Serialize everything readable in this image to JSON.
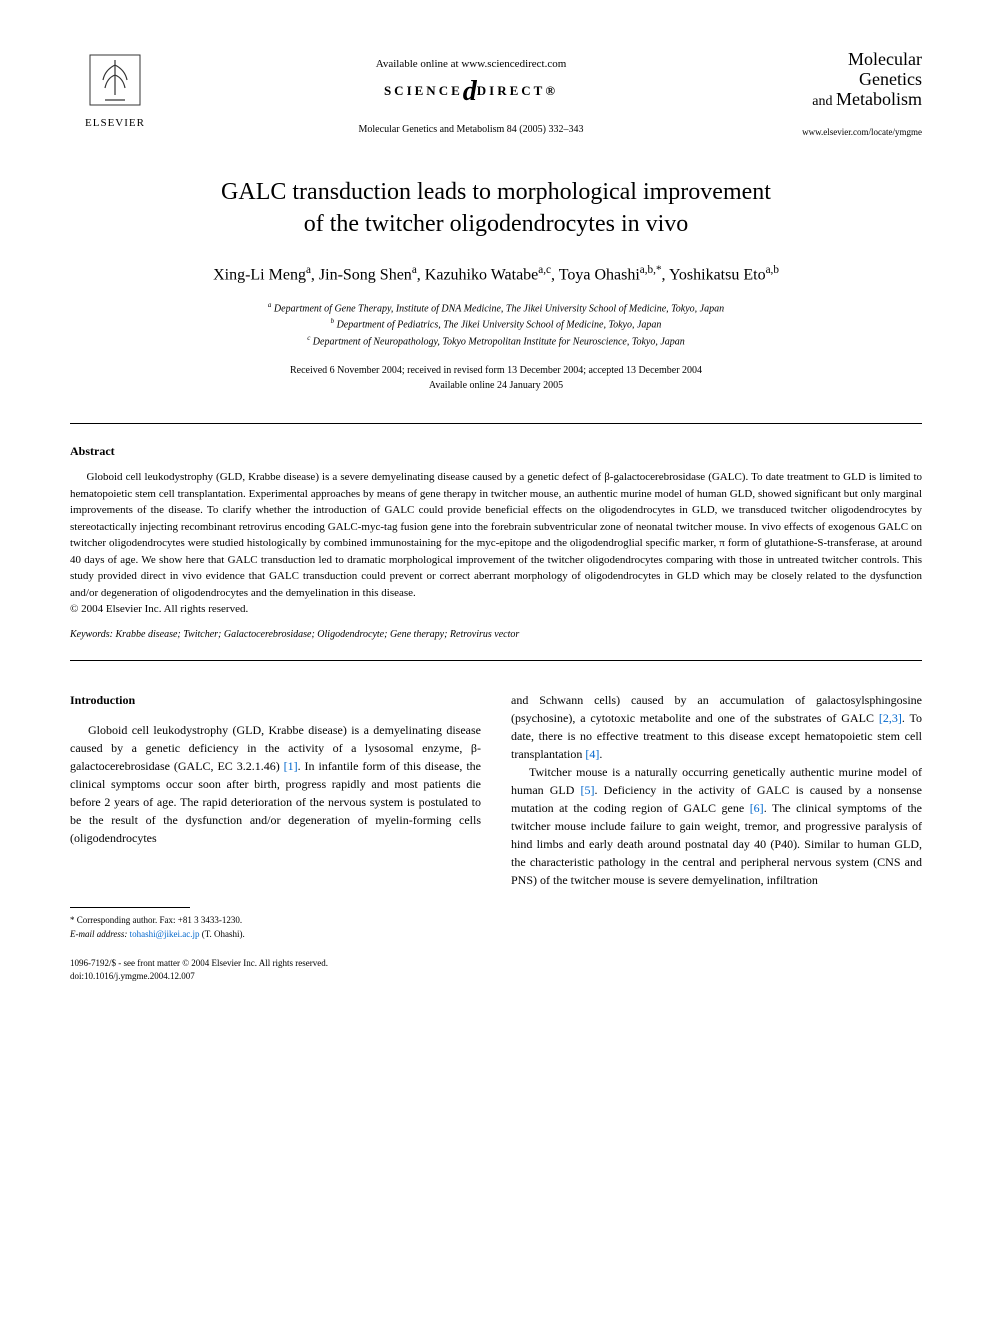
{
  "header": {
    "publisher_name": "ELSEVIER",
    "available_online": "Available online at www.sciencedirect.com",
    "science_direct_left": "SCIENCE",
    "science_direct_right": "DIRECT®",
    "citation": "Molecular Genetics and Metabolism 84 (2005) 332–343",
    "journal_title_line1": "Molecular Genetics",
    "journal_title_line2_and": "and ",
    "journal_title_line2": "Metabolism",
    "journal_url": "www.elsevier.com/locate/ymgme"
  },
  "article": {
    "title_line1": "GALC transduction leads to morphological improvement",
    "title_line2": "of the twitcher oligodendrocytes in vivo",
    "authors_html": "Xing-Li Meng<sup>a</sup>, Jin-Song Shen<sup>a</sup>, Kazuhiko Watabe<sup>a,c</sup>, Toya Ohashi<sup>a,b,*</sup>, Yoshikatsu Eto<sup>a,b</sup>",
    "affiliations": [
      "a Department of Gene Therapy, Institute of DNA Medicine, The Jikei University School of Medicine, Tokyo, Japan",
      "b Department of Pediatrics, The Jikei University School of Medicine, Tokyo, Japan",
      "c Department of Neuropathology, Tokyo Metropolitan Institute for Neuroscience, Tokyo, Japan"
    ],
    "dates_line1": "Received 6 November 2004; received in revised form 13 December 2004; accepted 13 December 2004",
    "dates_line2": "Available online 24 January 2005"
  },
  "abstract": {
    "heading": "Abstract",
    "text": "Globoid cell leukodystrophy (GLD, Krabbe disease) is a severe demyelinating disease caused by a genetic defect of β-galactocerebrosidase (GALC). To date treatment to GLD is limited to hematopoietic stem cell transplantation. Experimental approaches by means of gene therapy in twitcher mouse, an authentic murine model of human GLD, showed significant but only marginal improvements of the disease. To clarify whether the introduction of GALC could provide beneficial effects on the oligodendrocytes in GLD, we transduced twitcher oligodendrocytes by stereotactically injecting recombinant retrovirus encoding GALC-myc-tag fusion gene into the forebrain subventricular zone of neonatal twitcher mouse. In vivo effects of exogenous GALC on twitcher oligodendrocytes were studied histologically by combined immunostaining for the myc-epitope and the oligodendroglial specific marker, π form of glutathione-S-transferase, at around 40 days of age. We show here that GALC transduction led to dramatic morphological improvement of the twitcher oligodendrocytes comparing with those in untreated twitcher controls. This study provided direct in vivo evidence that GALC transduction could prevent or correct aberrant morphology of oligodendrocytes in GLD which may be closely related to the dysfunction and/or degeneration of oligodendrocytes and the demyelination in this disease.",
    "copyright": "© 2004 Elsevier Inc. All rights reserved.",
    "keywords_label": "Keywords:",
    "keywords": " Krabbe disease; Twitcher; Galactocerebrosidase; Oligodendrocyte; Gene therapy; Retrovirus vector"
  },
  "body": {
    "intro_heading": "Introduction",
    "col1_p1_pre": "Globoid cell leukodystrophy (GLD, Krabbe disease) is a demyelinating disease caused by a genetic deficiency in the activity of a lysosomal enzyme, β-galactocerebrosidase (GALC, EC 3.2.1.46) ",
    "ref1": "[1]",
    "col1_p1_post": ". In infantile form of this disease, the clinical symptoms occur soon after birth, progress rapidly and most patients die before 2 years of age. The rapid deterioration of the nervous system is postulated to be the result of the dysfunction and/or degeneration of myelin-forming cells (oligodendrocytes",
    "col2_p1_pre": "and Schwann cells) caused by an accumulation of galactosylsphingosine (psychosine), a cytotoxic metabolite and one of the substrates of GALC ",
    "ref23": "[2,3]",
    "col2_p1_mid": ". To date, there is no effective treatment to this disease except hematopoietic stem cell transplantation ",
    "ref4": "[4]",
    "col2_p1_post": ".",
    "col2_p2_pre": "Twitcher mouse is a naturally occurring genetically authentic murine model of human GLD ",
    "ref5": "[5]",
    "col2_p2_mid": ". Deficiency in the activity of GALC is caused by a nonsense mutation at the coding region of GALC gene ",
    "ref6": "[6]",
    "col2_p2_post": ". The clinical symptoms of the twitcher mouse include failure to gain weight, tremor, and progressive paralysis of hind limbs and early death around postnatal day 40 (P40). Similar to human GLD, the characteristic pathology in the central and peripheral nervous system (CNS and PNS) of the twitcher mouse is severe demyelination, infiltration"
  },
  "footnotes": {
    "corresponding": "* Corresponding author. Fax: +81 3 3433-1230.",
    "email_label": "E-mail address: ",
    "email": "tohashi@jikei.ac.jp",
    "email_who": " (T. Ohashi)."
  },
  "footer": {
    "line1": "1096-7192/$ - see front matter © 2004 Elsevier Inc. All rights reserved.",
    "line2": "doi:10.1016/j.ymgme.2004.12.007"
  }
}
